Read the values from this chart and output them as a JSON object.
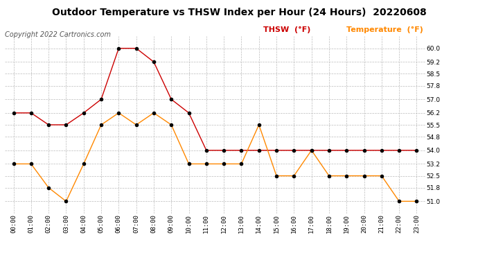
{
  "title": "Outdoor Temperature vs THSW Index per Hour (24 Hours)  20220608",
  "copyright": "Copyright 2022 Cartronics.com",
  "legend_thsw": "THSW  (°F)",
  "legend_temp": "Temperature  (°F)",
  "hours": [
    "00:00",
    "01:00",
    "02:00",
    "03:00",
    "04:00",
    "05:00",
    "06:00",
    "07:00",
    "08:00",
    "09:00",
    "10:00",
    "11:00",
    "12:00",
    "13:00",
    "14:00",
    "15:00",
    "16:00",
    "17:00",
    "18:00",
    "19:00",
    "20:00",
    "21:00",
    "22:00",
    "23:00"
  ],
  "thsw": [
    56.2,
    56.2,
    55.5,
    55.5,
    56.2,
    57.0,
    60.0,
    60.0,
    59.2,
    57.0,
    56.2,
    54.0,
    54.0,
    54.0,
    54.0,
    54.0,
    54.0,
    54.0,
    54.0,
    54.0,
    54.0,
    54.0,
    54.0,
    54.0
  ],
  "temperature": [
    53.2,
    53.2,
    51.8,
    51.0,
    53.2,
    55.5,
    56.2,
    55.5,
    56.2,
    55.5,
    53.2,
    53.2,
    53.2,
    53.2,
    55.5,
    52.5,
    52.5,
    54.0,
    52.5,
    52.5,
    52.5,
    52.5,
    51.0,
    51.0
  ],
  "thsw_color": "#cc0000",
  "temp_color": "#ff8800",
  "ylim_min": 50.3,
  "ylim_max": 60.7,
  "yticks": [
    51.0,
    51.8,
    52.5,
    53.2,
    54.0,
    54.8,
    55.5,
    56.2,
    57.0,
    57.8,
    58.5,
    59.2,
    60.0
  ],
  "bg_color": "#ffffff",
  "grid_color": "#bbbbbb",
  "marker_color": "#000000",
  "marker_size": 3,
  "line_width": 1.0,
  "title_fontsize": 10,
  "tick_fontsize": 6.5,
  "copyright_fontsize": 7,
  "legend_fontsize": 8
}
